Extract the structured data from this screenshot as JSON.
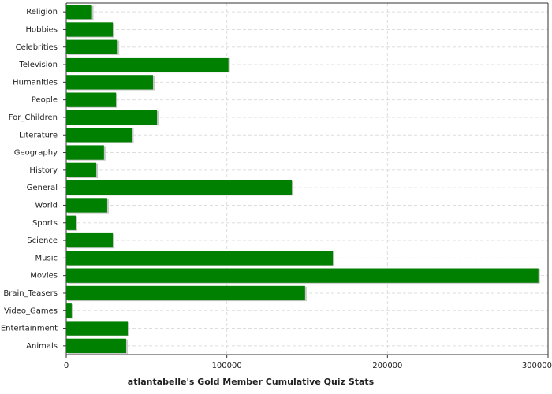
{
  "chart_data": {
    "type": "bar",
    "orientation": "horizontal",
    "x_label": "atlantabelle's Gold Member Cumulative Quiz Stats",
    "categories": [
      "Religion",
      "Hobbies",
      "Celebrities",
      "Television",
      "Humanities",
      "People",
      "For_Children",
      "Literature",
      "Geography",
      "History",
      "General",
      "World",
      "Sports",
      "Science",
      "Music",
      "Movies",
      "Brain_Teasers",
      "Video_Games",
      "Entertainment",
      "Animals"
    ],
    "values": [
      16000,
      29000,
      32000,
      101000,
      54000,
      31000,
      56500,
      41000,
      23500,
      18700,
      140500,
      25500,
      5900,
      29000,
      166000,
      294000,
      148700,
      3400,
      38300,
      37300
    ],
    "color": "#008000",
    "xlim": [
      0,
      300000
    ],
    "xticks": [
      0,
      100000,
      200000,
      300000
    ],
    "grid": true
  }
}
